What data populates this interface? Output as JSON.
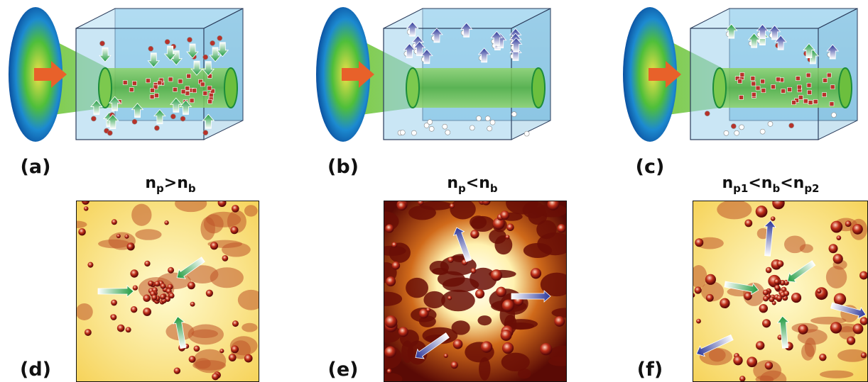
{
  "top_labels": [
    "(a)",
    "(b)",
    "(c)"
  ],
  "bottom_labels": [
    "(d)",
    "(e)",
    "(f)"
  ],
  "conditions": [
    [
      {
        "text": "n",
        "sub": "p"
      },
      {
        "text": ">"
      },
      {
        "text": "n",
        "sub": "b"
      }
    ],
    [
      {
        "text": "n",
        "sub": "p"
      },
      {
        "text": "<"
      },
      {
        "text": "n",
        "sub": "b"
      }
    ],
    [
      {
        "text": "n",
        "sub": "p1"
      },
      {
        "text": "<"
      },
      {
        "text": "n",
        "sub": "b"
      },
      {
        "text": "<"
      },
      {
        "text": "n",
        "sub": "p2"
      }
    ]
  ]
}
